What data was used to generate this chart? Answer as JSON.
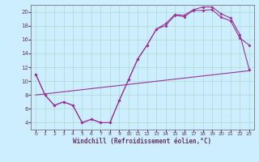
{
  "title": "",
  "xlabel": "Windchill (Refroidissement éolien,°C)",
  "bg_color": "#cceeff",
  "grid_color": "#aaddcc",
  "line_color": "#993399",
  "xlim": [
    -0.5,
    23.5
  ],
  "ylim": [
    3,
    21
  ],
  "yticks": [
    4,
    6,
    8,
    10,
    12,
    14,
    16,
    18,
    20
  ],
  "xticks": [
    0,
    1,
    2,
    3,
    4,
    5,
    6,
    7,
    8,
    9,
    10,
    11,
    12,
    13,
    14,
    15,
    16,
    17,
    18,
    19,
    20,
    21,
    22,
    23
  ],
  "series1": [
    [
      0,
      11
    ],
    [
      1,
      8
    ],
    [
      2,
      6.5
    ],
    [
      3,
      7
    ],
    [
      4,
      6.5
    ],
    [
      5,
      4
    ],
    [
      6,
      4.5
    ],
    [
      7,
      4
    ],
    [
      8,
      4
    ],
    [
      9,
      7.2
    ],
    [
      10,
      10.2
    ],
    [
      11,
      13.2
    ],
    [
      12,
      15.2
    ],
    [
      13,
      17.5
    ],
    [
      14,
      18
    ],
    [
      15,
      19.5
    ],
    [
      16,
      19.3
    ],
    [
      17,
      20.2
    ],
    [
      18,
      20.2
    ],
    [
      19,
      20.3
    ],
    [
      20,
      19.2
    ],
    [
      21,
      18.7
    ],
    [
      22,
      16.2
    ],
    [
      23,
      15.2
    ]
  ],
  "series2": [
    [
      0,
      11
    ],
    [
      1,
      8
    ],
    [
      2,
      6.5
    ],
    [
      3,
      7
    ],
    [
      4,
      6.5
    ],
    [
      5,
      4
    ],
    [
      6,
      4.5
    ],
    [
      7,
      4
    ],
    [
      8,
      4
    ],
    [
      9,
      7.2
    ],
    [
      10,
      10.2
    ],
    [
      11,
      13.2
    ],
    [
      12,
      15.2
    ],
    [
      13,
      17.5
    ],
    [
      14,
      18.3
    ],
    [
      15,
      19.6
    ],
    [
      16,
      19.5
    ],
    [
      17,
      20.3
    ],
    [
      18,
      20.7
    ],
    [
      19,
      20.7
    ],
    [
      20,
      19.7
    ],
    [
      21,
      19.1
    ],
    [
      22,
      16.7
    ],
    [
      23,
      11.7
    ]
  ],
  "series3": [
    [
      0,
      8.0
    ],
    [
      23,
      11.5
    ]
  ]
}
